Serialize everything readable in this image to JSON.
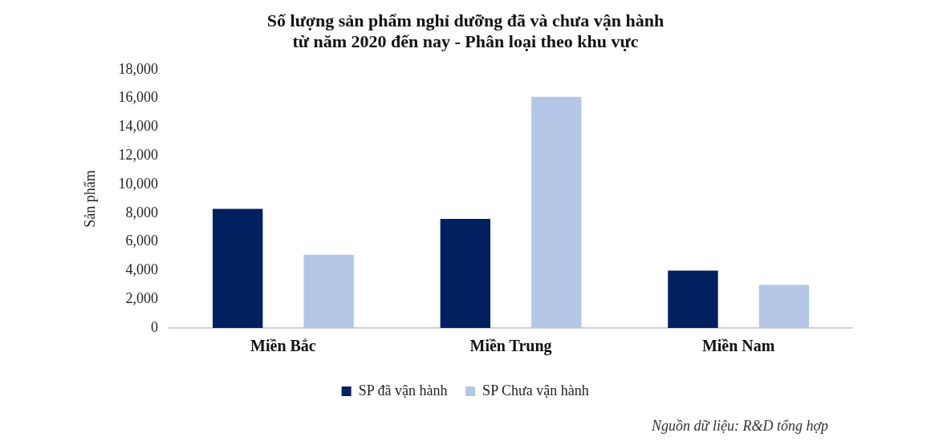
{
  "chart_data": {
    "type": "bar",
    "title": "Số lượng sản phẩm nghỉ dưỡng đã và chưa vận hành từ năm 2020 đến nay - Phân loại theo khu vực",
    "ylabel": "Sản phẩm",
    "categories": [
      "Miền Bắc",
      "Miền Trung",
      "Miền Nam"
    ],
    "series": [
      {
        "name": "SP đã vận hành",
        "color": "#002060",
        "values": [
          8300,
          7600,
          4000
        ]
      },
      {
        "name": "SP Chưa vận hành",
        "color": "#b4c7e7",
        "values": [
          5100,
          16100,
          3000
        ]
      }
    ],
    "ylim": [
      0,
      18000
    ],
    "yticks": [
      {
        "value": 0,
        "label": "0"
      },
      {
        "value": 2000,
        "label": "2,000"
      },
      {
        "value": 4000,
        "label": "4,000"
      },
      {
        "value": 6000,
        "label": "6,000"
      },
      {
        "value": 8000,
        "label": "8,000"
      },
      {
        "value": 10000,
        "label": "10,000"
      },
      {
        "value": 12000,
        "label": "12,000"
      },
      {
        "value": 14000,
        "label": "14,000"
      },
      {
        "value": 16000,
        "label": "16,000"
      },
      {
        "value": 18000,
        "label": "18,000"
      }
    ],
    "grid": false,
    "legend": "bottom",
    "annotations": [
      "Nguồn dữ liệu: R&D tổng hợp"
    ]
  }
}
